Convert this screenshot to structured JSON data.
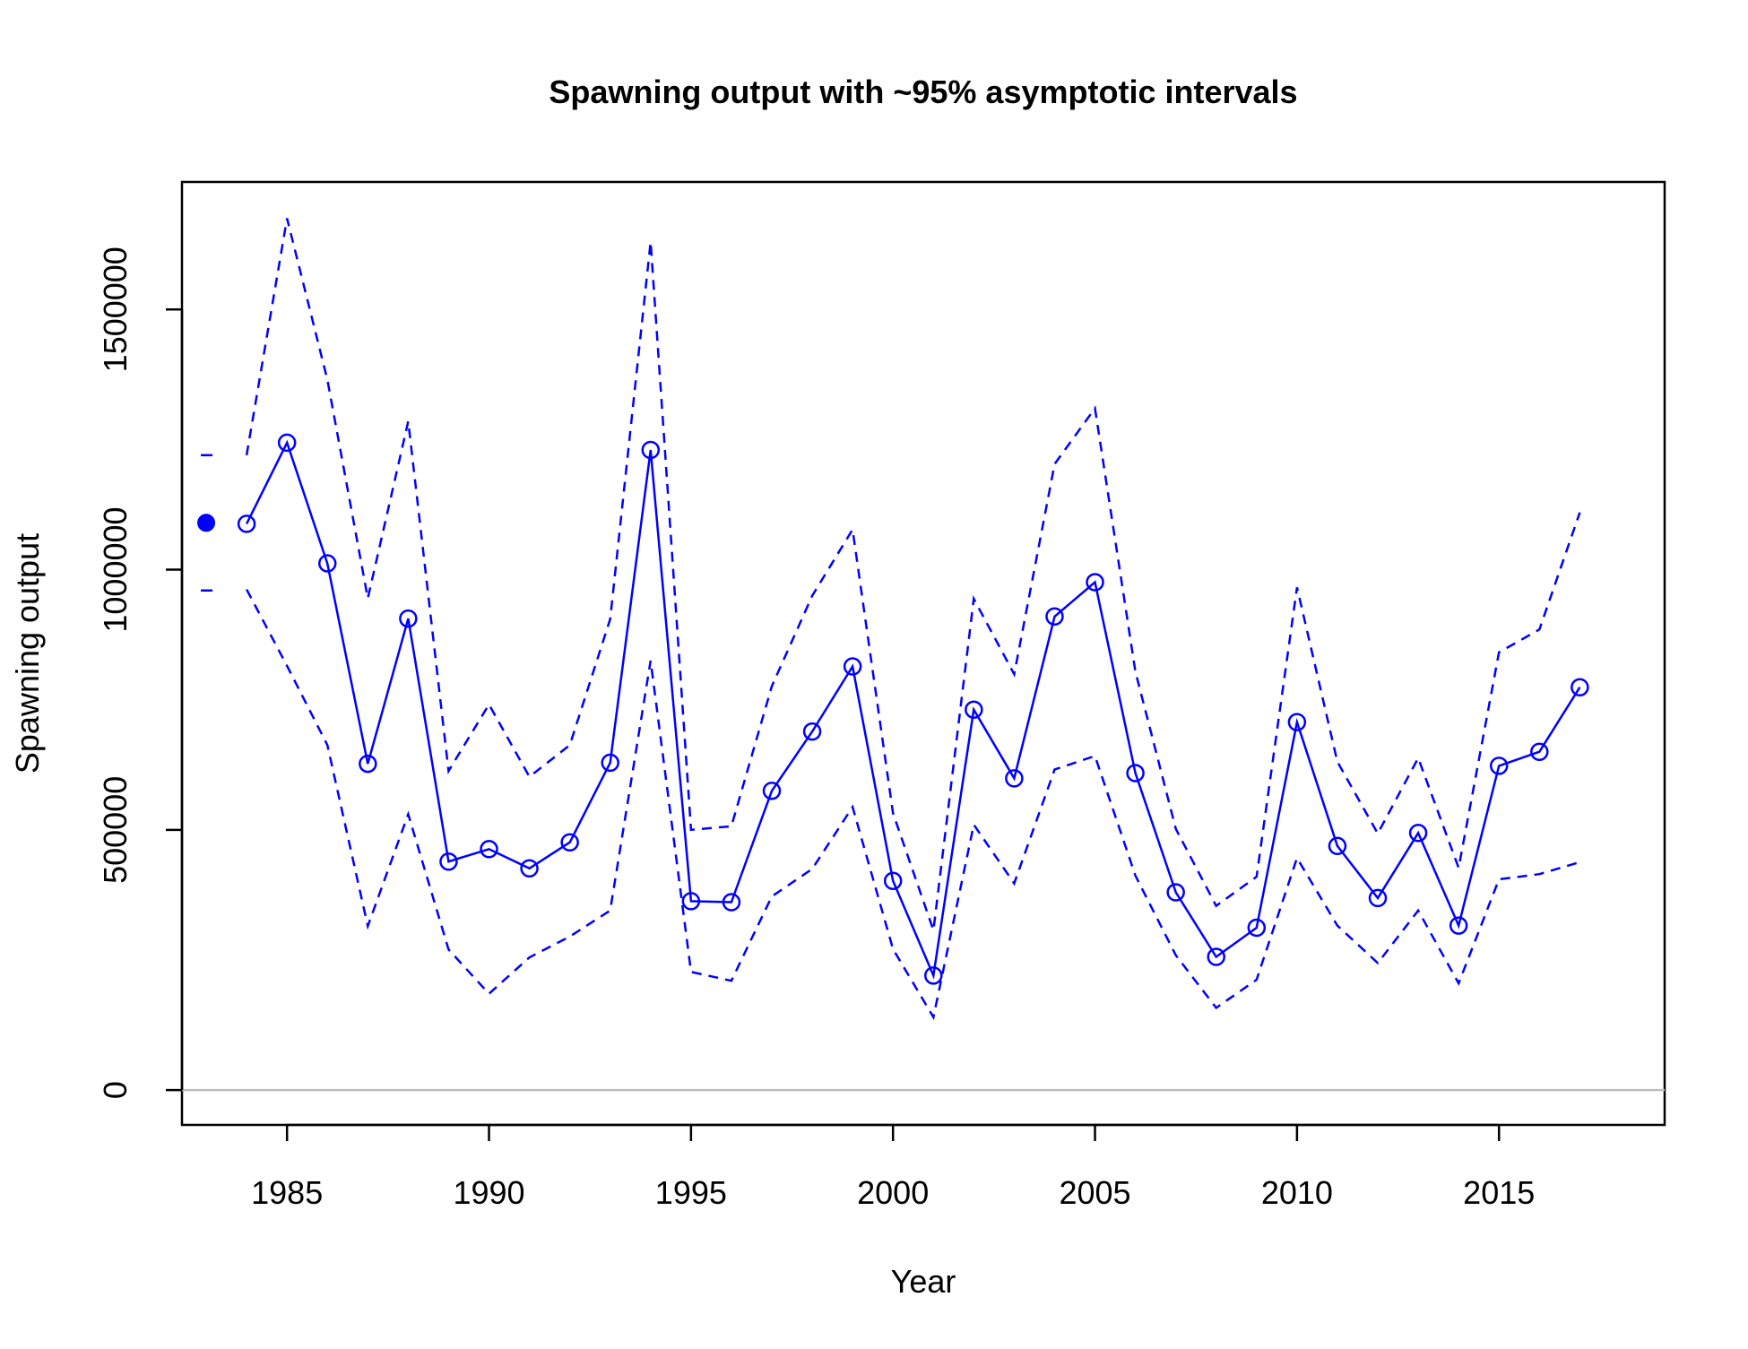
{
  "chart_data": {
    "type": "line",
    "title": "Spawning output with ~95% asymptotic intervals",
    "xlabel": "Year",
    "ylabel": "Spawning output",
    "xlim": [
      1982.4,
      2019.1
    ],
    "ylim": [
      -67000,
      1745000
    ],
    "x_ticks": [
      1985,
      1990,
      1995,
      2000,
      2005,
      2010,
      2015
    ],
    "y_ticks": [
      0,
      500000,
      1000000,
      1500000
    ],
    "x_tick_labels": [
      "1985",
      "1990",
      "1995",
      "2000",
      "2005",
      "2010",
      "2015"
    ],
    "y_tick_labels": [
      "0",
      "500000",
      "1000000",
      "1500000"
    ],
    "grid": false,
    "reference_line": {
      "y": 0,
      "color": "#bebebe"
    },
    "color": "#0000ff",
    "virgin": {
      "x": 1983,
      "value": 1090000,
      "lower": 960000,
      "upper": 1220000
    },
    "x": [
      1984,
      1985,
      1986,
      1987,
      1988,
      1989,
      1990,
      1991,
      1992,
      1993,
      1994,
      1995,
      1996,
      1997,
      1998,
      1999,
      2000,
      2001,
      2002,
      2003,
      2004,
      2005,
      2006,
      2007,
      2008,
      2009,
      2010,
      2011,
      2012,
      2013,
      2014,
      2015,
      2016,
      2017
    ],
    "series": [
      {
        "values": [
          1088000,
          1244000,
          1012000,
          627000,
          906000,
          439000,
          463000,
          426000,
          476000,
          629000,
          1230000,
          363000,
          361000,
          575000,
          689000,
          814000,
          402000,
          220000,
          731000,
          599000,
          910000,
          976000,
          609000,
          380000,
          256000,
          312000,
          707000,
          469000,
          369000,
          494000,
          316000,
          623000,
          650000,
          774000
        ],
        "style": "solid",
        "markers": "open-circle"
      },
      {
        "values": [
          1220000,
          1675000,
          1365000,
          945000,
          1285000,
          613000,
          741000,
          602000,
          663000,
          905000,
          1630000,
          500000,
          507000,
          776000,
          950000,
          1077000,
          532000,
          307000,
          944000,
          799000,
          1203000,
          1310000,
          804000,
          502000,
          354000,
          410000,
          966000,
          631000,
          493000,
          638000,
          427000,
          841000,
          885000,
          1110000
        ],
        "style": "dashed"
      },
      {
        "values": [
          962000,
          815000,
          663000,
          315000,
          530000,
          270000,
          185000,
          255000,
          295000,
          345000,
          825000,
          227000,
          210000,
          372000,
          425000,
          544000,
          271000,
          140000,
          510000,
          397000,
          616000,
          642000,
          412000,
          259000,
          158000,
          212000,
          446000,
          316000,
          244000,
          345000,
          205000,
          405000,
          415000,
          438000
        ],
        "style": "dashed"
      }
    ]
  }
}
